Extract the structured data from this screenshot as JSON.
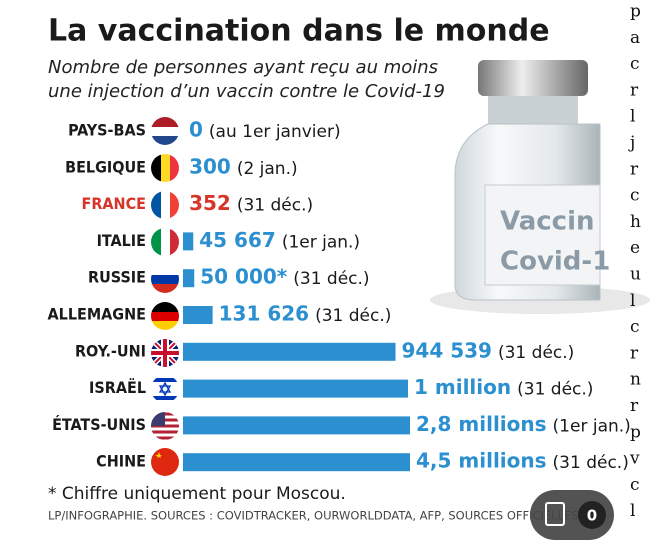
{
  "chart_data": {
    "type": "bar",
    "title": "La vaccination dans le monde",
    "subtitle": [
      "Nombre de personnes ayant reçu au moins",
      "une injection d’un vaccin contre le Covid-19"
    ],
    "categories": [
      "PAYS-BAS",
      "BELGIQUE",
      "FRANCE",
      "ITALIE",
      "RUSSIE",
      "ALLEMAGNE",
      "ROY.-UNI",
      "ISRAËL",
      "ÉTATS-UNIS",
      "CHINE"
    ],
    "values": [
      0,
      300,
      352,
      45667,
      50000,
      131626,
      944539,
      1000000,
      2800000,
      4500000
    ],
    "value_labels": [
      "0",
      "300",
      "352",
      "45 667",
      "50 000*",
      "131 626",
      "944 539",
      "1 million",
      "2,8 millions",
      "4,5 millions"
    ],
    "notes": [
      "(au 1er janvier)",
      "(2 jan.)",
      "(31 déc.)",
      "(1er jan.)",
      "(31 déc.)",
      "(31 déc.)",
      "(31 déc.)",
      "(31 déc.)",
      "(1er jan.)",
      "(31 déc.)"
    ],
    "label_colors": [
      "#1a1a1a",
      "#1a1a1a",
      "#d7342a",
      "#1a1a1a",
      "#1a1a1a",
      "#1a1a1a",
      "#1a1a1a",
      "#1a1a1a",
      "#1a1a1a",
      "#1a1a1a"
    ],
    "value_colors": [
      "#2b8fd0",
      "#2b8fd0",
      "#d7342a",
      "#2b8fd0",
      "#2b8fd0",
      "#2b8fd0",
      "#2b8fd0",
      "#2b8fd0",
      "#2b8fd0",
      "#2b8fd0"
    ],
    "color": "#2b8fd0",
    "xlim": [
      0,
      1000000
    ],
    "footnote": "* Chiffre uniquement pour Moscou.",
    "source": "LP/INFOGRAPHIE.  SOURCES : COVIDTRACKER, OURWORLDDATA, AFP, SOURCES OFFICIELLES",
    "vial_label": [
      "Vaccin",
      "Covid-1"
    ]
  },
  "side_column": [
    "p",
    "a",
    "c",
    "r",
    "l",
    "j",
    "r",
    "c",
    "h",
    "e",
    "u",
    "l",
    "c",
    "r",
    "n",
    "r",
    "p",
    "v",
    "c",
    "l"
  ],
  "badge": "0"
}
